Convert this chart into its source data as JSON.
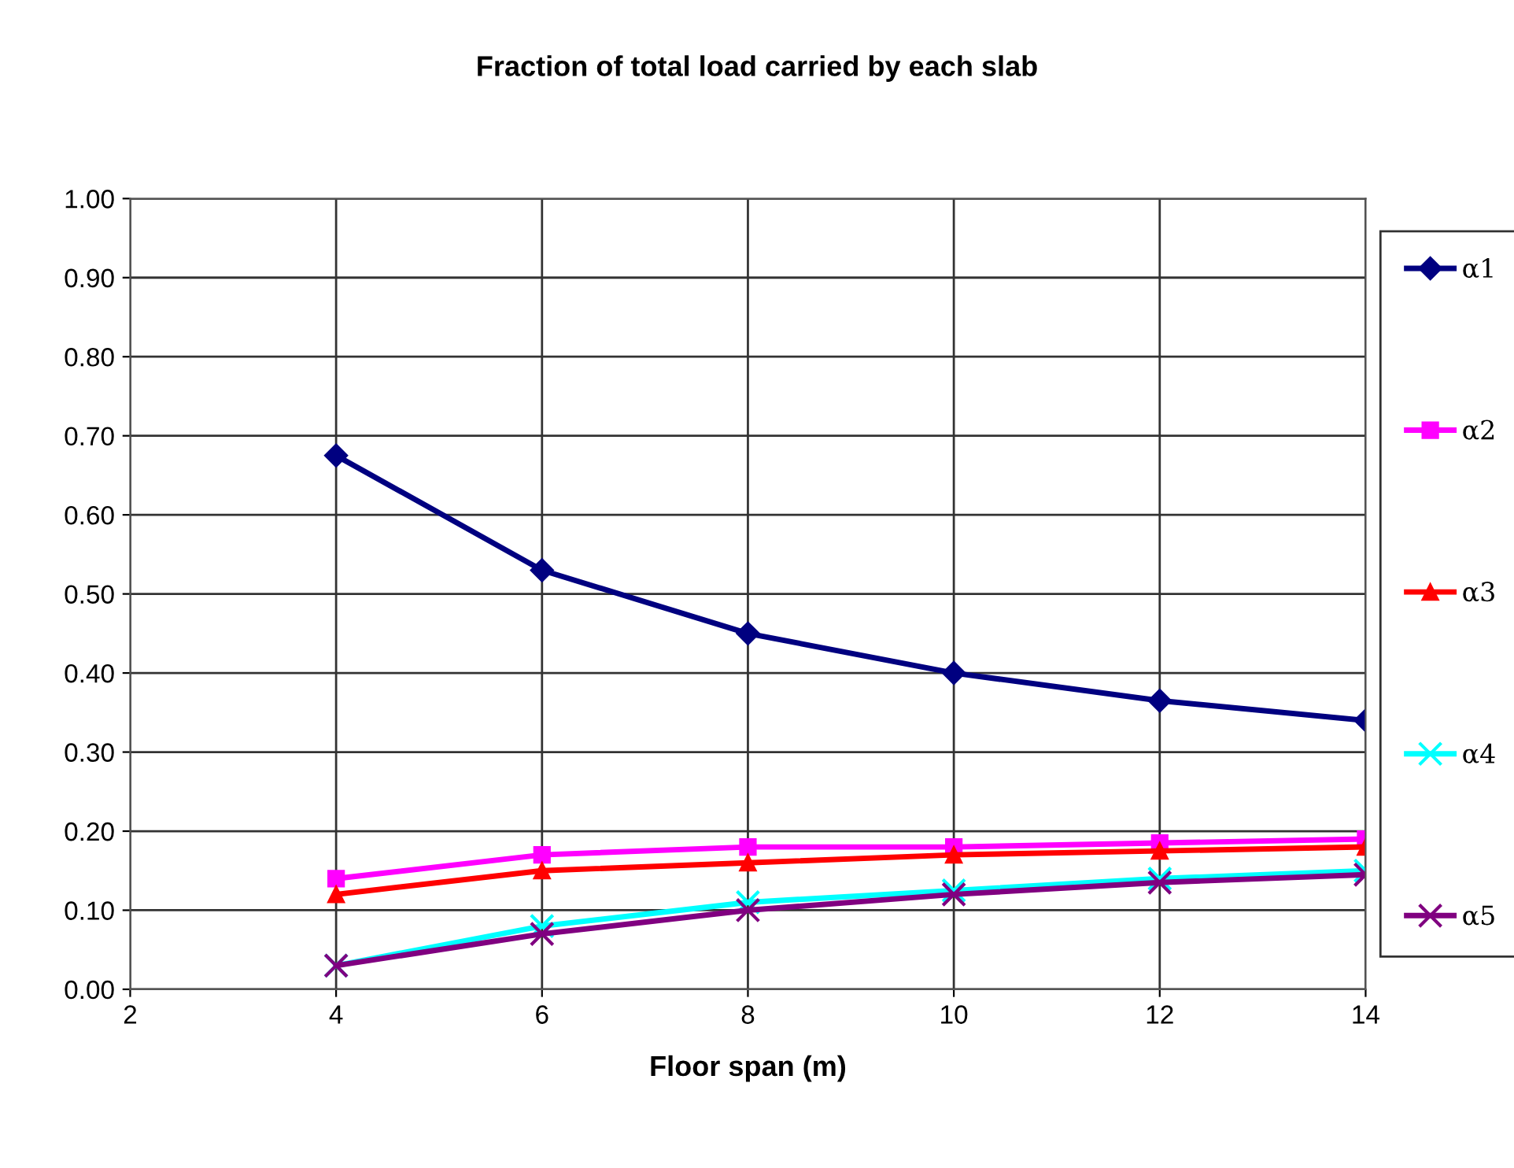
{
  "chart_data": {
    "type": "line",
    "title": "Fraction of total load carried by each slab",
    "xlabel": "Floor span (m)",
    "x": [
      4,
      6,
      8,
      10,
      12,
      14
    ],
    "xlim": [
      2,
      14
    ],
    "xticks": [
      2,
      4,
      6,
      8,
      10,
      12,
      14
    ],
    "ylim": [
      0,
      1
    ],
    "yticks": [
      {
        "value": 0,
        "label": "0.00"
      },
      {
        "value": 0.1,
        "label": "0.10"
      },
      {
        "value": 0.2,
        "label": "0.20"
      },
      {
        "value": 0.3,
        "label": "0.30"
      },
      {
        "value": 0.4,
        "label": "0.40"
      },
      {
        "value": 0.5,
        "label": "0.50"
      },
      {
        "value": 0.6,
        "label": "0.60"
      },
      {
        "value": 0.7,
        "label": "0.70"
      },
      {
        "value": 0.8,
        "label": "0.80"
      },
      {
        "value": 0.9,
        "label": "0.90"
      },
      {
        "value": 1,
        "label": "1.00"
      }
    ],
    "grid": true,
    "legend": "right",
    "series": [
      {
        "name": "α1",
        "color": "#000080",
        "marker": "diamond",
        "values": [
          0.675,
          0.53,
          0.45,
          0.4,
          0.365,
          0.34
        ]
      },
      {
        "name": "α2",
        "color": "#ff00ff",
        "marker": "square",
        "values": [
          0.14,
          0.17,
          0.18,
          0.18,
          0.185,
          0.19
        ]
      },
      {
        "name": "α3",
        "color": "#ff0000",
        "marker": "triangle",
        "values": [
          0.12,
          0.15,
          0.16,
          0.17,
          0.175,
          0.18
        ]
      },
      {
        "name": "α4",
        "color": "#00ffff",
        "marker": "cross",
        "values": [
          0.03,
          0.08,
          0.11,
          0.125,
          0.14,
          0.15
        ]
      },
      {
        "name": "α5",
        "color": "#800080",
        "marker": "cross",
        "values": [
          0.03,
          0.07,
          0.1,
          0.12,
          0.135,
          0.145
        ]
      }
    ]
  }
}
